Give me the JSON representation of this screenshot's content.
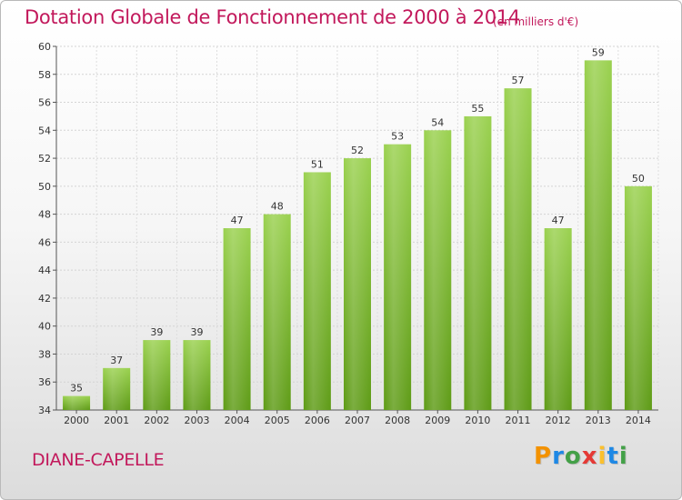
{
  "header": {
    "title": "Dotation Globale de Fonctionnement de 2000 à 2014",
    "subtitle": "(en milliers d'€)"
  },
  "footer": {
    "commune": "DIANE-CAPELLE",
    "logo_letters": [
      "P",
      "r",
      "o",
      "x",
      "i",
      "t",
      "i"
    ],
    "logo_colors": [
      "#f39200",
      "#1e88e5",
      "#43a047",
      "#e53935",
      "#fbc02d",
      "#1e88e5",
      "#43a047"
    ]
  },
  "chart_data": {
    "type": "bar",
    "categories": [
      "2000",
      "2001",
      "2002",
      "2003",
      "2004",
      "2005",
      "2006",
      "2007",
      "2008",
      "2009",
      "2010",
      "2011",
      "2012",
      "2013",
      "2014"
    ],
    "values": [
      35,
      37,
      39,
      39,
      47,
      48,
      51,
      52,
      53,
      54,
      55,
      57,
      47,
      59,
      50
    ],
    "ylim": [
      34,
      60
    ],
    "yticks": [
      34,
      36,
      38,
      40,
      42,
      44,
      46,
      48,
      50,
      52,
      54,
      56,
      58,
      60
    ],
    "grid": true,
    "bar_color": "#8cc63f",
    "bar_color_dark": "#5e9b16"
  }
}
